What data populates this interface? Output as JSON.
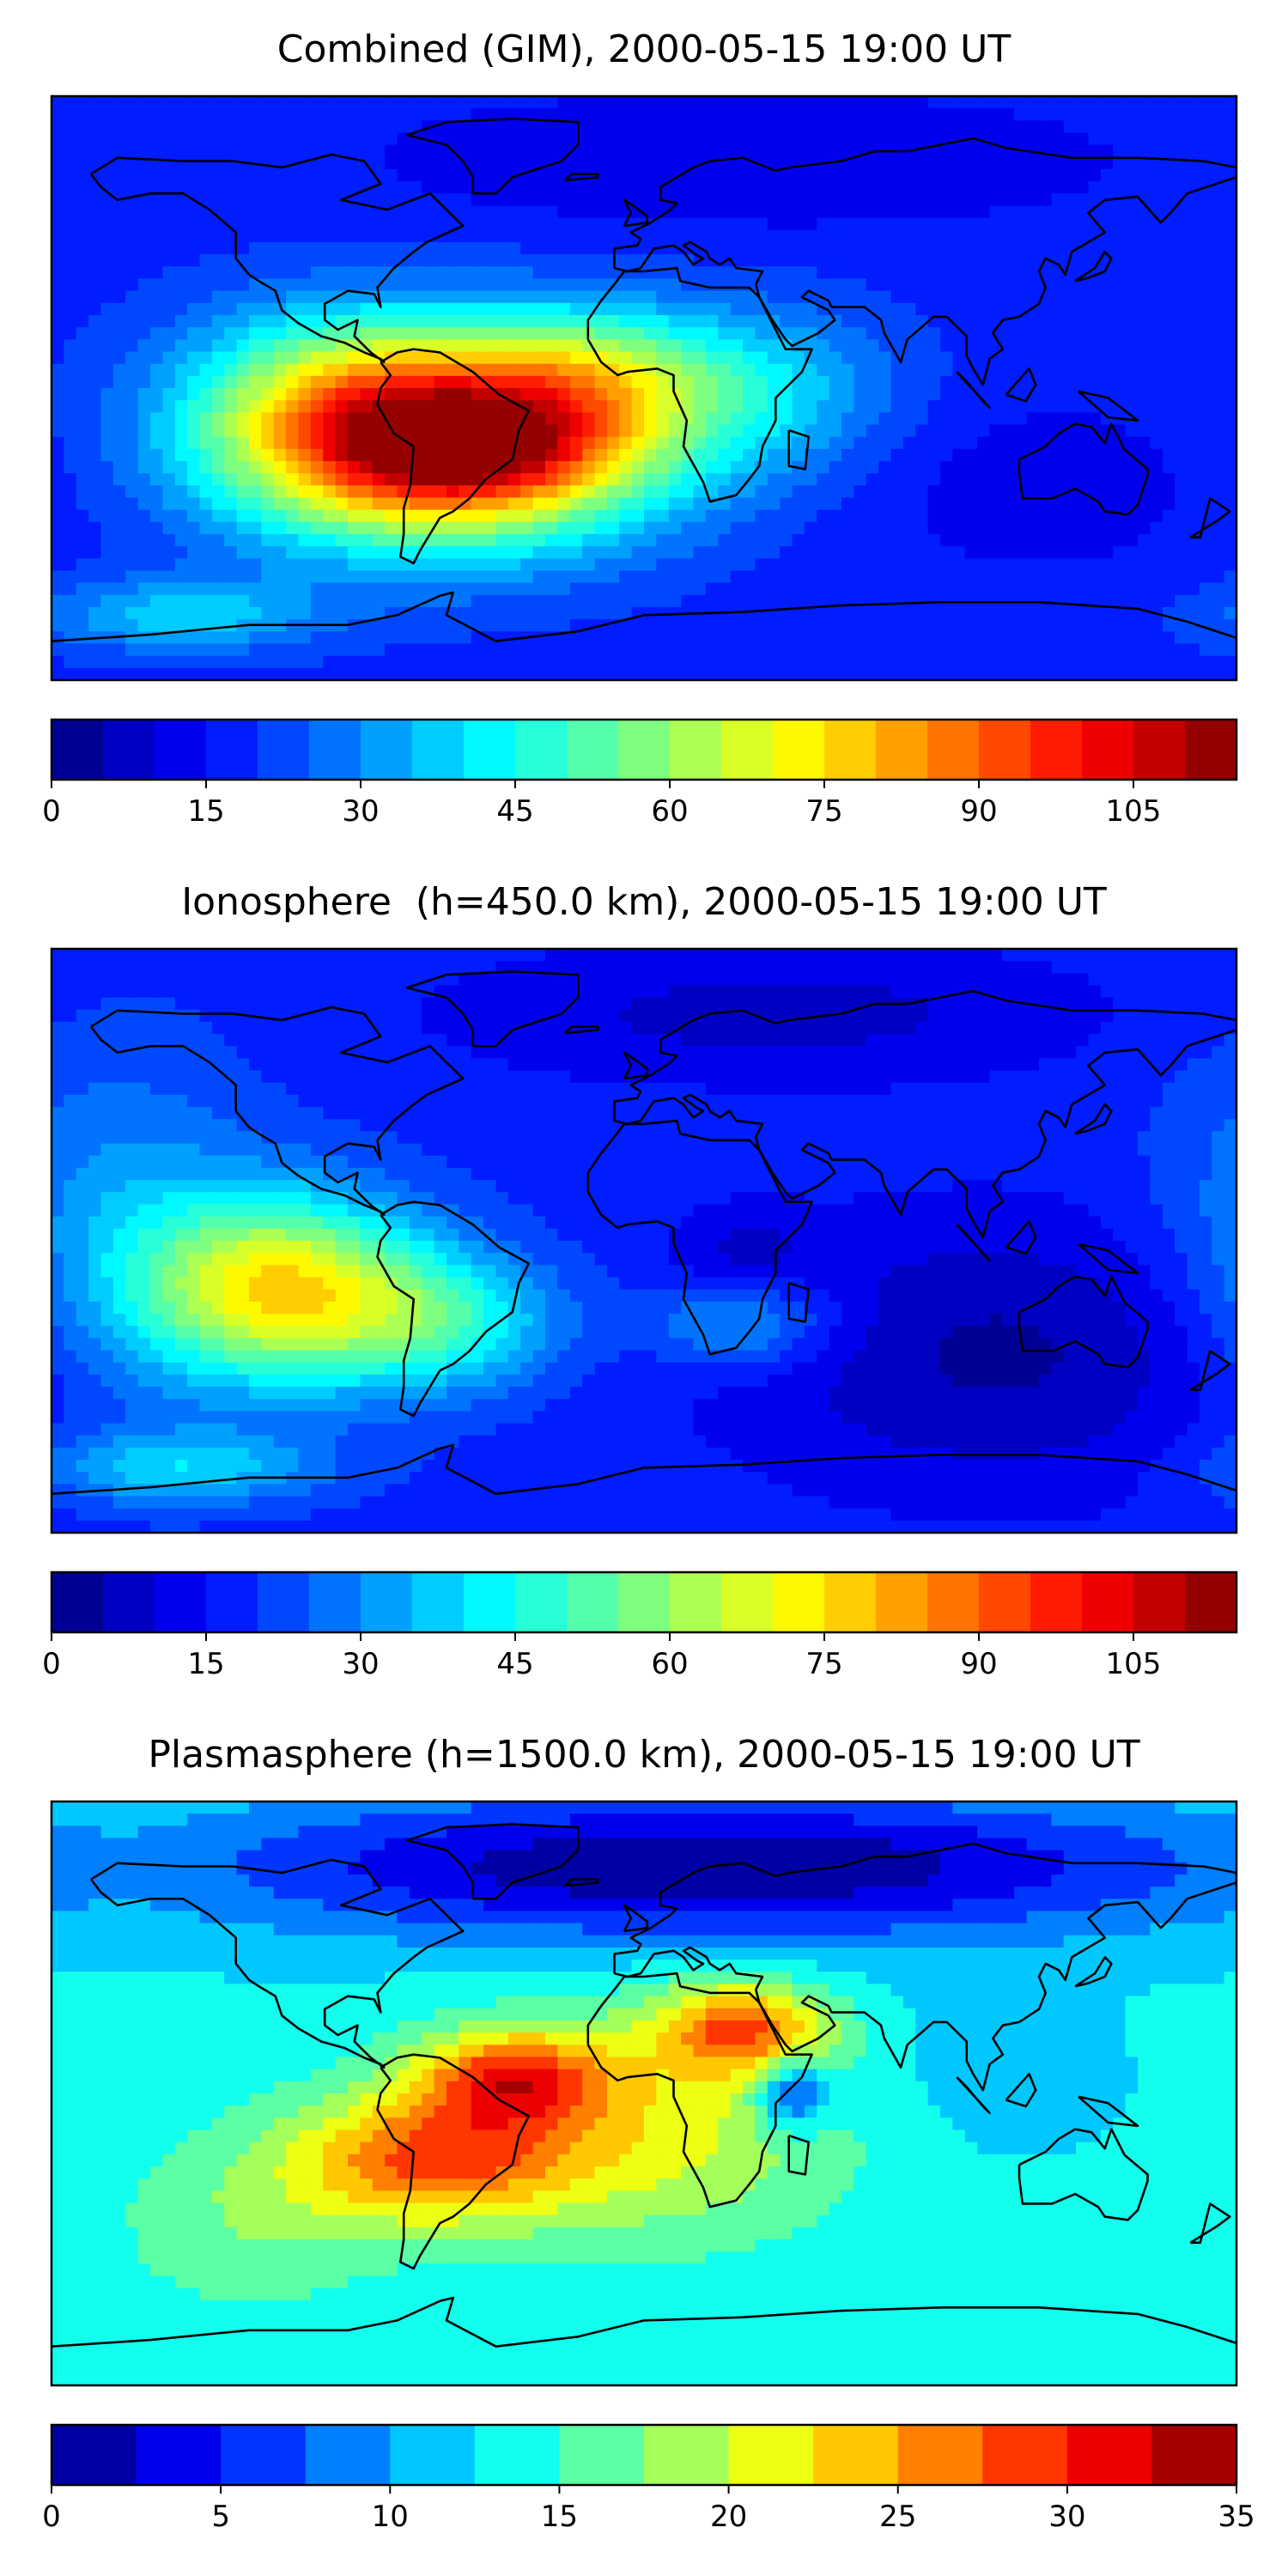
{
  "chart_data": [
    {
      "type": "heatmap",
      "title": "Combined (GIM), 2000-05-15 19:00 UT",
      "colorbar": {
        "min": 0,
        "max": 115,
        "step": 5,
        "ticks": [
          0,
          15,
          30,
          45,
          60,
          75,
          90,
          105
        ],
        "colormap": "jet"
      },
      "background_level": 18,
      "features": [
        {
          "lon": -60,
          "lat": -15,
          "lon_width": 45,
          "lat_width": 22,
          "value": 95
        },
        {
          "lon": -50,
          "lat": -20,
          "lon_width": 25,
          "lat_width": 10,
          "value": 18
        },
        {
          "lon": -15,
          "lat": 5,
          "lon_width": 25,
          "lat_width": 14,
          "value": 20
        },
        {
          "lon": -100,
          "lat": -5,
          "lon_width": 30,
          "lat_width": 22,
          "value": 15
        },
        {
          "lon": 35,
          "lat": 0,
          "lon_width": 30,
          "lat_width": 18,
          "value": 18
        },
        {
          "lon": 120,
          "lat": -30,
          "lon_width": 40,
          "lat_width": 20,
          "value": -6
        },
        {
          "lon": 30,
          "lat": 70,
          "lon_width": 80,
          "lat_width": 15,
          "value": -8
        },
        {
          "lon": -140,
          "lat": -70,
          "lon_width": 30,
          "lat_width": 8,
          "value": 20
        }
      ]
    },
    {
      "type": "heatmap",
      "title": "Ionosphere  (h=450.0 km), 2000-05-15 19:00 UT",
      "colorbar": {
        "min": 0,
        "max": 115,
        "step": 5,
        "ticks": [
          0,
          15,
          30,
          45,
          60,
          75,
          90,
          105
        ],
        "colormap": "jet"
      },
      "background_level": 18,
      "features": [
        {
          "lon": -110,
          "lat": -15,
          "lon_width": 30,
          "lat_width": 20,
          "value": 55
        },
        {
          "lon": -60,
          "lat": -25,
          "lon_width": 25,
          "lat_width": 15,
          "value": 25
        },
        {
          "lon": -160,
          "lat": 0,
          "lon_width": 30,
          "lat_width": 40,
          "value": 15
        },
        {
          "lon": 110,
          "lat": -35,
          "lon_width": 60,
          "lat_width": 30,
          "value": -14
        },
        {
          "lon": 30,
          "lat": -5,
          "lon_width": 15,
          "lat_width": 10,
          "value": -8
        },
        {
          "lon": 30,
          "lat": -25,
          "lon_width": 20,
          "lat_width": 10,
          "value": 18
        },
        {
          "lon": 40,
          "lat": 70,
          "lon_width": 70,
          "lat_width": 15,
          "value": -10
        },
        {
          "lon": -140,
          "lat": -70,
          "lon_width": 30,
          "lat_width": 8,
          "value": 20
        }
      ]
    },
    {
      "type": "heatmap",
      "title": "Plasmasphere (h=1500.0 km), 2000-05-15 19:00 UT",
      "colorbar": {
        "min": 0,
        "max": 35,
        "step": 2.5,
        "ticks": [
          0,
          5,
          10,
          15,
          20,
          25,
          30,
          35
        ],
        "colormap": "jet"
      },
      "background_level": 13,
      "features": [
        {
          "lon": -65,
          "lat": -20,
          "lon_width": 30,
          "lat_width": 14,
          "value": 13
        },
        {
          "lon": -40,
          "lat": 5,
          "lon_width": 20,
          "lat_width": 10,
          "value": 13
        },
        {
          "lon": 30,
          "lat": 20,
          "lon_width": 18,
          "lat_width": 10,
          "value": 13
        },
        {
          "lon": 0,
          "lat": -10,
          "lon_width": 45,
          "lat_width": 25,
          "value": 8
        },
        {
          "lon": 45,
          "lat": 0,
          "lon_width": 8,
          "lat_width": 8,
          "value": -10
        },
        {
          "lon": 20,
          "lat": 70,
          "lon_width": 110,
          "lat_width": 16,
          "value": -13
        },
        {
          "lon": 100,
          "lat": 5,
          "lon_width": 30,
          "lat_width": 20,
          "value": -2
        },
        {
          "lon": -120,
          "lat": -40,
          "lon_width": 30,
          "lat_width": 20,
          "value": 4
        }
      ]
    }
  ],
  "colormap": {
    "name": "jet",
    "stops": [
      "#00007f",
      "#0000ff",
      "#007fff",
      "#00ffff",
      "#7fff7f",
      "#ffff00",
      "#ff7f00",
      "#ff0000",
      "#7f0000"
    ]
  },
  "coastline_color": "#000000"
}
